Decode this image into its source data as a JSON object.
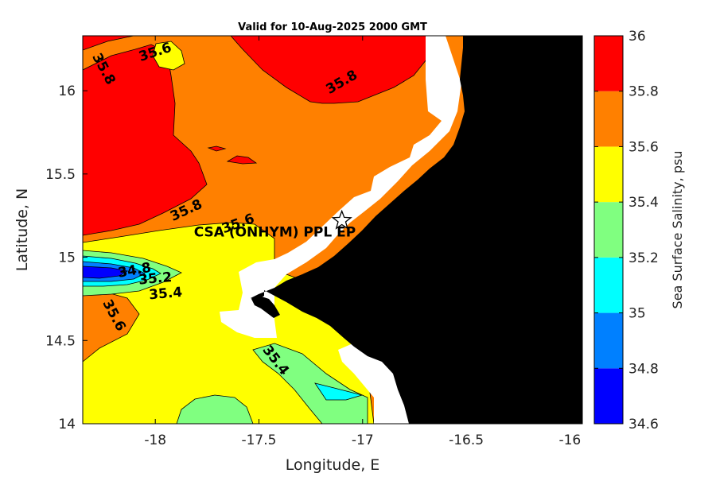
{
  "chart_data": {
    "type": "filled-contour map",
    "title": "Valid for 10-Aug-2025 2000 GMT",
    "xlabel": "Longitude, E",
    "ylabel": "Latitude, N",
    "xlim": [
      -18.35,
      -15.94
    ],
    "ylim": [
      14.0,
      16.33
    ],
    "x_ticks": [
      -18,
      -17.5,
      -17,
      -16.5,
      -16
    ],
    "x_tick_labels": [
      "-18",
      "-17.5",
      "-17",
      "-16.5",
      "-16"
    ],
    "y_ticks": [
      14,
      14.5,
      15,
      15.5,
      16
    ],
    "y_tick_labels": [
      "14",
      "14.5",
      "15",
      "15.5",
      "16"
    ],
    "colorbar": {
      "label": "Sea Surface Salinity, psu",
      "levels": [
        34.6,
        34.8,
        35.0,
        35.2,
        35.4,
        35.6,
        35.8,
        36.0
      ],
      "tick_labels": [
        "34.6",
        "34.8",
        "35",
        "35.2",
        "35.4",
        "35.6",
        "35.8",
        "36"
      ],
      "colors": [
        "#0000ff",
        "#0080ff",
        "#00ffff",
        "#80ff80",
        "#ffff00",
        "#ff8000",
        "#ff0000"
      ]
    },
    "contour_labels": [
      {
        "text": "35.6",
        "lon": -18.0,
        "lat": 16.23,
        "angle": -18
      },
      {
        "text": "35.8",
        "lon": -18.25,
        "lat": 16.13,
        "angle": 62
      },
      {
        "text": "35.8",
        "lon": -17.1,
        "lat": 16.05,
        "angle": -30
      },
      {
        "text": "35.8",
        "lon": -17.85,
        "lat": 15.28,
        "angle": -25
      },
      {
        "text": "35.6",
        "lon": -17.6,
        "lat": 15.2,
        "angle": -20
      },
      {
        "text": "34.8",
        "lon": -18.1,
        "lat": 14.92,
        "angle": -10
      },
      {
        "text": "35.2",
        "lon": -18.0,
        "lat": 14.87,
        "angle": -5
      },
      {
        "text": "35.4",
        "lon": -17.95,
        "lat": 14.78,
        "angle": -5
      },
      {
        "text": "35.6",
        "lon": -18.2,
        "lat": 14.65,
        "angle": 62
      },
      {
        "text": "35.4",
        "lon": -17.42,
        "lat": 14.38,
        "angle": 52
      }
    ],
    "marker": {
      "label": "CSA (ONHYM) PPL EP",
      "lon": -17.1,
      "lat": 15.22,
      "symbol": "star"
    }
  },
  "colors": {
    "land": "#000000",
    "coastal_mask": "#ffffff",
    "contour_line": "#000000"
  }
}
